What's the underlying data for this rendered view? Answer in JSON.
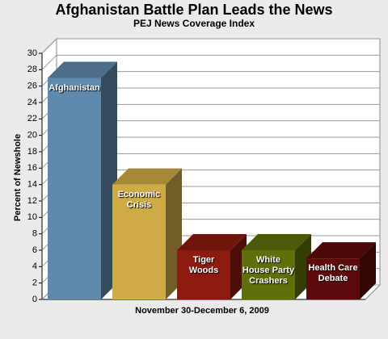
{
  "chart_data": {
    "type": "bar",
    "title": "Afghanistan Battle Plan Leads the News",
    "subtitle": "PEJ News Coverage Index",
    "x_label": "November 30-December 6, 2009",
    "y_label": "Percent of Newshole",
    "categories": [
      "Afghanistan",
      "Economic Crisis",
      "Tiger Woods",
      "White House Party Crashers",
      "Health Care Debate"
    ],
    "values": [
      27,
      14,
      6,
      6,
      5
    ],
    "colors": [
      "#5f89ad",
      "#ceab45",
      "#8c1a0f",
      "#5f6f0a",
      "#5c0a0a"
    ],
    "ylim": [
      0,
      30
    ],
    "yticks": [
      0,
      2,
      4,
      6,
      8,
      10,
      12,
      14,
      16,
      18,
      20,
      22,
      24,
      26,
      28,
      30
    ],
    "grid": true
  }
}
